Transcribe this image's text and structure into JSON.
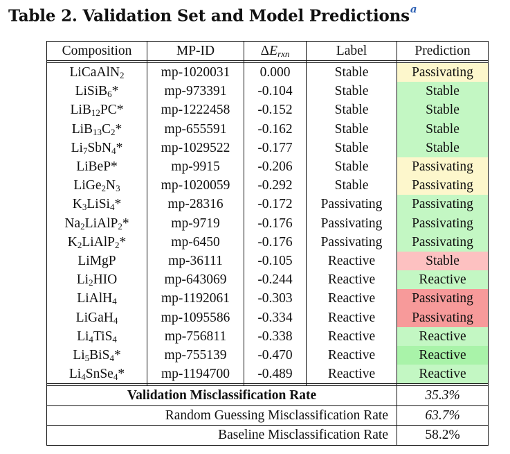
{
  "title": {
    "text": "Table 2. Validation Set and Model Predictions",
    "footnote_mark": "a"
  },
  "headers": {
    "composition": "Composition",
    "mpid": "MP-ID",
    "delta_e": "Δ",
    "delta_e_var": "E",
    "delta_e_sub": "rxn",
    "label": "Label",
    "prediction": "Prediction"
  },
  "rows": [
    {
      "comp": "LiCaAlN₂",
      "mpid": "mp-1020031",
      "de": "0.000",
      "label": "Stable",
      "pred": "Passivating",
      "color": "#fdf7cc"
    },
    {
      "comp": "LiSiB₆*",
      "mpid": "mp-973391",
      "de": "-0.104",
      "label": "Stable",
      "pred": "Stable",
      "color": "#c3f7c3"
    },
    {
      "comp": "LiB₁₂PC*",
      "mpid": "mp-1222458",
      "de": "-0.152",
      "label": "Stable",
      "pred": "Stable",
      "color": "#c3f7c3"
    },
    {
      "comp": "LiB₁₃C₂*",
      "mpid": "mp-655591",
      "de": "-0.162",
      "label": "Stable",
      "pred": "Stable",
      "color": "#c3f7c3"
    },
    {
      "comp": "Li₇SbN₄*",
      "mpid": "mp-1029522",
      "de": "-0.177",
      "label": "Stable",
      "pred": "Stable",
      "color": "#c3f7c3"
    },
    {
      "comp": "LiBeP*",
      "mpid": "mp-9915",
      "de": "-0.206",
      "label": "Stable",
      "pred": "Passivating",
      "color": "#fdf7cc"
    },
    {
      "comp": "LiGe₂N₃",
      "mpid": "mp-1020059",
      "de": "-0.292",
      "label": "Stable",
      "pred": "Passivating",
      "color": "#fdf7cc"
    },
    {
      "comp": "K₃LiSi₄*",
      "mpid": "mp-28316",
      "de": "-0.172",
      "label": "Passivating",
      "pred": "Passivating",
      "color": "#c3f7c3"
    },
    {
      "comp": "Na₂LiAlP₂*",
      "mpid": "mp-9719",
      "de": "-0.176",
      "label": "Passivating",
      "pred": "Passivating",
      "color": "#c3f7c3"
    },
    {
      "comp": "K₂LiAlP₂*",
      "mpid": "mp-6450",
      "de": "-0.176",
      "label": "Passivating",
      "pred": "Passivating",
      "color": "#c3f7c3"
    },
    {
      "comp": "LiMgP",
      "mpid": "mp-36111",
      "de": "-0.105",
      "label": "Reactive",
      "pred": "Stable",
      "color": "#fdc1c1"
    },
    {
      "comp": "Li₂HIO",
      "mpid": "mp-643069",
      "de": "-0.244",
      "label": "Reactive",
      "pred": "Reactive",
      "color": "#c3f7c3"
    },
    {
      "comp": "LiAlH₄",
      "mpid": "mp-1192061",
      "de": "-0.303",
      "label": "Reactive",
      "pred": "Passivating",
      "color": "#f79a9a"
    },
    {
      "comp": "LiGaH₄",
      "mpid": "mp-1095586",
      "de": "-0.334",
      "label": "Reactive",
      "pred": "Passivating",
      "color": "#f79a9a"
    },
    {
      "comp": "Li₄TiS₄",
      "mpid": "mp-756811",
      "de": "-0.338",
      "label": "Reactive",
      "pred": "Reactive",
      "color": "#c3f7c3"
    },
    {
      "comp": "Li₅BiS₄*",
      "mpid": "mp-755139",
      "de": "-0.470",
      "label": "Reactive",
      "pred": "Reactive",
      "color": "#a9f3a9"
    },
    {
      "comp": "Li₄SnSe₄*",
      "mpid": "mp-1194700",
      "de": "-0.489",
      "label": "Reactive",
      "pred": "Reactive",
      "color": "#c3f7c3"
    }
  ],
  "footer": [
    {
      "label": "Validation Misclassification Rate",
      "value": "35.3%",
      "bold": true,
      "italic": true
    },
    {
      "label": "Random Guessing Misclassification Rate",
      "value": "63.7%",
      "bold": false,
      "italic": true
    },
    {
      "label": "Baseline Misclassification Rate",
      "value": "58.2%",
      "bold": false,
      "italic": false
    }
  ]
}
